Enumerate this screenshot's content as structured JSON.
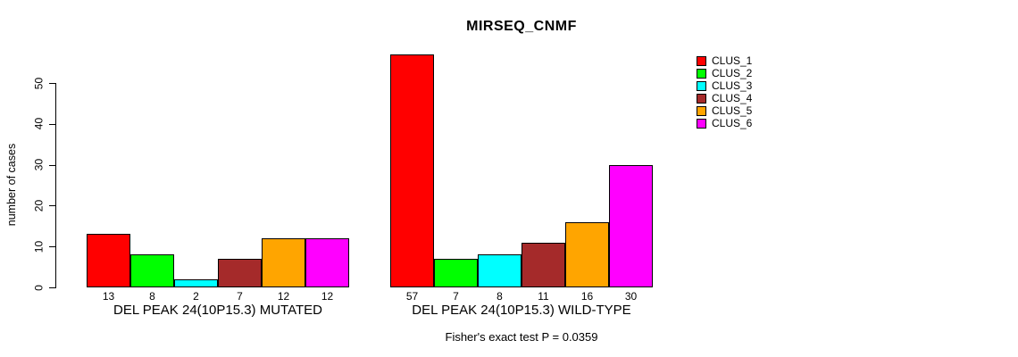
{
  "chart_data": {
    "type": "bar",
    "title": "MIRSEQ_CNMF",
    "ylabel": "number of cases",
    "xlabel": "",
    "annotation": "Fisher's exact test P = 0.0359",
    "categories": [
      "DEL PEAK 24(10P15.3) MUTATED",
      "DEL PEAK 24(10P15.3) WILD-TYPE"
    ],
    "series": [
      {
        "name": "CLUS_1",
        "color": "#ff0000",
        "values": [
          13,
          57
        ]
      },
      {
        "name": "CLUS_2",
        "color": "#00ff00",
        "values": [
          8,
          7
        ]
      },
      {
        "name": "CLUS_3",
        "color": "#00ffff",
        "values": [
          2,
          8
        ]
      },
      {
        "name": "CLUS_4",
        "color": "#a52a2a",
        "values": [
          7,
          11
        ]
      },
      {
        "name": "CLUS_5",
        "color": "#ffa500",
        "values": [
          12,
          16
        ]
      },
      {
        "name": "CLUS_6",
        "color": "#ff00ff",
        "values": [
          12,
          30
        ]
      }
    ],
    "bar_value_labels": [
      [
        13,
        8,
        2,
        7,
        12,
        12
      ],
      [
        57,
        7,
        8,
        11,
        16,
        30
      ]
    ],
    "yticks": [
      0,
      10,
      20,
      30,
      40,
      50
    ],
    "ylim": [
      0,
      57
    ],
    "grid": false,
    "legend_position": "top-right",
    "legend_entries": [
      "CLUS_1",
      "CLUS_2",
      "CLUS_3",
      "CLUS_4",
      "CLUS_5",
      "CLUS_6"
    ]
  }
}
